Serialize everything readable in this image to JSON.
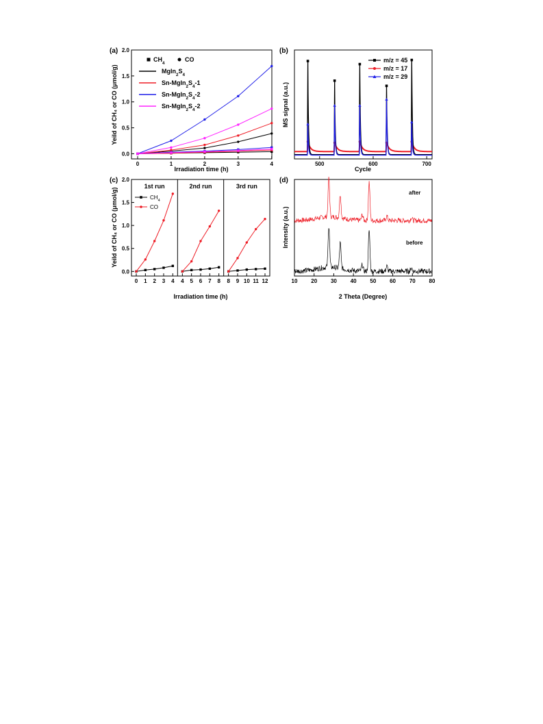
{
  "colors": {
    "black": "#000000",
    "red": "#ee1c25",
    "blue": "#1f1fe8",
    "magenta": "#ff22ff"
  },
  "panels": {
    "a": {
      "label": "(a)",
      "xlabel": "Irradiation time (h)",
      "ylabel": "Yeild of CH₄ or CO (μmol/g)"
    },
    "b": {
      "label": "(b)",
      "xlabel": "Cycle",
      "ylabel": "MS signal (a.u.)"
    },
    "c": {
      "label": "(c)",
      "xlabel": "Irradiation time (h)",
      "ylabel": "Yeild of CH₄ or CO (μmol/g)"
    },
    "d": {
      "label": "(d)",
      "xlabel": "2 Theta (Degree)",
      "ylabel": "Intensity (a.u.)"
    }
  },
  "chart_data": [
    {
      "panel": "a",
      "type": "line",
      "xlabel": "Irradiation time (h)",
      "ylabel": "Yeild of CH₄ or CO (μmol/g)",
      "x": [
        0,
        1,
        2,
        3,
        4
      ],
      "xticks": [
        "0",
        "1",
        "2",
        "3",
        "4"
      ],
      "yticks": [
        "0.0",
        "0.5",
        "1.0",
        "1.5",
        "2.0"
      ],
      "xlim": [
        0,
        4
      ],
      "ylim": [
        -0.1,
        2.0
      ],
      "marker_legend": [
        {
          "symbol": "square",
          "label": "CH₄"
        },
        {
          "symbol": "circle",
          "label": "CO"
        }
      ],
      "series": [
        {
          "name": "MgIn₂S₄",
          "color": "#000000",
          "CO": [
            0,
            0.05,
            0.11,
            0.23,
            0.39
          ],
          "CH4": [
            0,
            0.01,
            0.02,
            0.03,
            0.04
          ]
        },
        {
          "name": "Sn-MgIn₂S₄-1",
          "color": "#ee1c25",
          "CO": [
            0,
            0.07,
            0.17,
            0.35,
            0.59
          ],
          "CH4": [
            0,
            0.01,
            0.03,
            0.05,
            0.07
          ]
        },
        {
          "name": "Sn-MgIn₂S₄-2",
          "color": "#1f1fe8",
          "CO": [
            0,
            0.25,
            0.66,
            1.11,
            1.69
          ],
          "CH4": [
            0,
            0.03,
            0.05,
            0.08,
            0.12
          ]
        },
        {
          "name": "Sn-MgIn₂S₄-2",
          "color": "#ff22ff",
          "CO": [
            0,
            0.12,
            0.3,
            0.56,
            0.87
          ],
          "CH4": [
            0,
            0.02,
            0.04,
            0.06,
            0.09
          ]
        }
      ]
    },
    {
      "panel": "b",
      "type": "line",
      "xlabel": "Cycle",
      "ylabel": "MS signal (a.u.)",
      "xticks": [
        "500",
        "600",
        "700"
      ],
      "xlim": [
        453,
        710
      ],
      "ylim": [
        0,
        1
      ],
      "peaks_x": [
        478,
        528,
        575,
        625,
        672
      ],
      "series": [
        {
          "name": "m/z = 45",
          "color": "#000000",
          "peaks": [
            0.92,
            0.73,
            0.89,
            0.68,
            0.93
          ],
          "baseline": 0.015
        },
        {
          "name": "m/z = 17",
          "color": "#ee1c25",
          "peaks": [
            0.14,
            0.13,
            0.14,
            0.13,
            0.14
          ],
          "baseline": 0.045
        },
        {
          "name": "m/z = 29",
          "color": "#1f1fe8",
          "peaks": [
            0.31,
            0.49,
            0.49,
            0.55,
            0.33
          ],
          "baseline": 0.01
        }
      ]
    },
    {
      "panel": "c",
      "type": "line",
      "xlabel": "Irradiation time (h)",
      "ylabel": "Yeild of CH₄ or CO (μmol/g)",
      "yticks": [
        "0.0",
        "0.5",
        "1.0",
        "1.5",
        "2.0"
      ],
      "ylim": [
        -0.1,
        2.0
      ],
      "legend": [
        {
          "name": "CH₄",
          "color": "#000000"
        },
        {
          "name": "CO",
          "color": "#ee1c25"
        }
      ],
      "runs": [
        {
          "title": "1st run",
          "xticks": [
            "0",
            "1",
            "2",
            "3",
            "4"
          ],
          "x": [
            0,
            1,
            2,
            3,
            4
          ],
          "CH4": [
            0,
            0.03,
            0.05,
            0.08,
            0.12
          ],
          "CO": [
            0,
            0.26,
            0.66,
            1.11,
            1.69
          ]
        },
        {
          "title": "2nd run",
          "xticks": [
            "4",
            "5",
            "6",
            "7",
            "8"
          ],
          "x": [
            4,
            5,
            6,
            7,
            8
          ],
          "CH4": [
            0,
            0.03,
            0.04,
            0.06,
            0.09
          ],
          "CO": [
            0,
            0.22,
            0.66,
            0.98,
            1.32
          ]
        },
        {
          "title": "3rd run",
          "xticks": [
            "8",
            "9",
            "10",
            "11",
            "12"
          ],
          "x": [
            8,
            9,
            10,
            11,
            12
          ],
          "CH4": [
            0,
            0.02,
            0.04,
            0.05,
            0.06
          ],
          "CO": [
            0,
            0.29,
            0.63,
            0.92,
            1.14
          ]
        }
      ]
    },
    {
      "panel": "d",
      "type": "line",
      "xlabel": "2 Theta (Degree)",
      "ylabel": "Intensity (a.u.)",
      "xticks": [
        "10",
        "20",
        "30",
        "40",
        "50",
        "60",
        "70",
        "80"
      ],
      "xlim": [
        10,
        80
      ],
      "peaks": [
        {
          "two_theta": 27.5,
          "intensity": 1.0
        },
        {
          "two_theta": 33.3,
          "intensity": 0.62
        },
        {
          "two_theta": 44.5,
          "intensity": 0.15
        },
        {
          "two_theta": 48.0,
          "intensity": 1.0
        },
        {
          "two_theta": 57.0,
          "intensity": 0.12
        },
        {
          "two_theta": 69.5,
          "intensity": 0.08
        }
      ],
      "series": [
        {
          "name": "after",
          "color": "#ee1c25"
        },
        {
          "name": "before",
          "color": "#000000"
        }
      ]
    }
  ]
}
